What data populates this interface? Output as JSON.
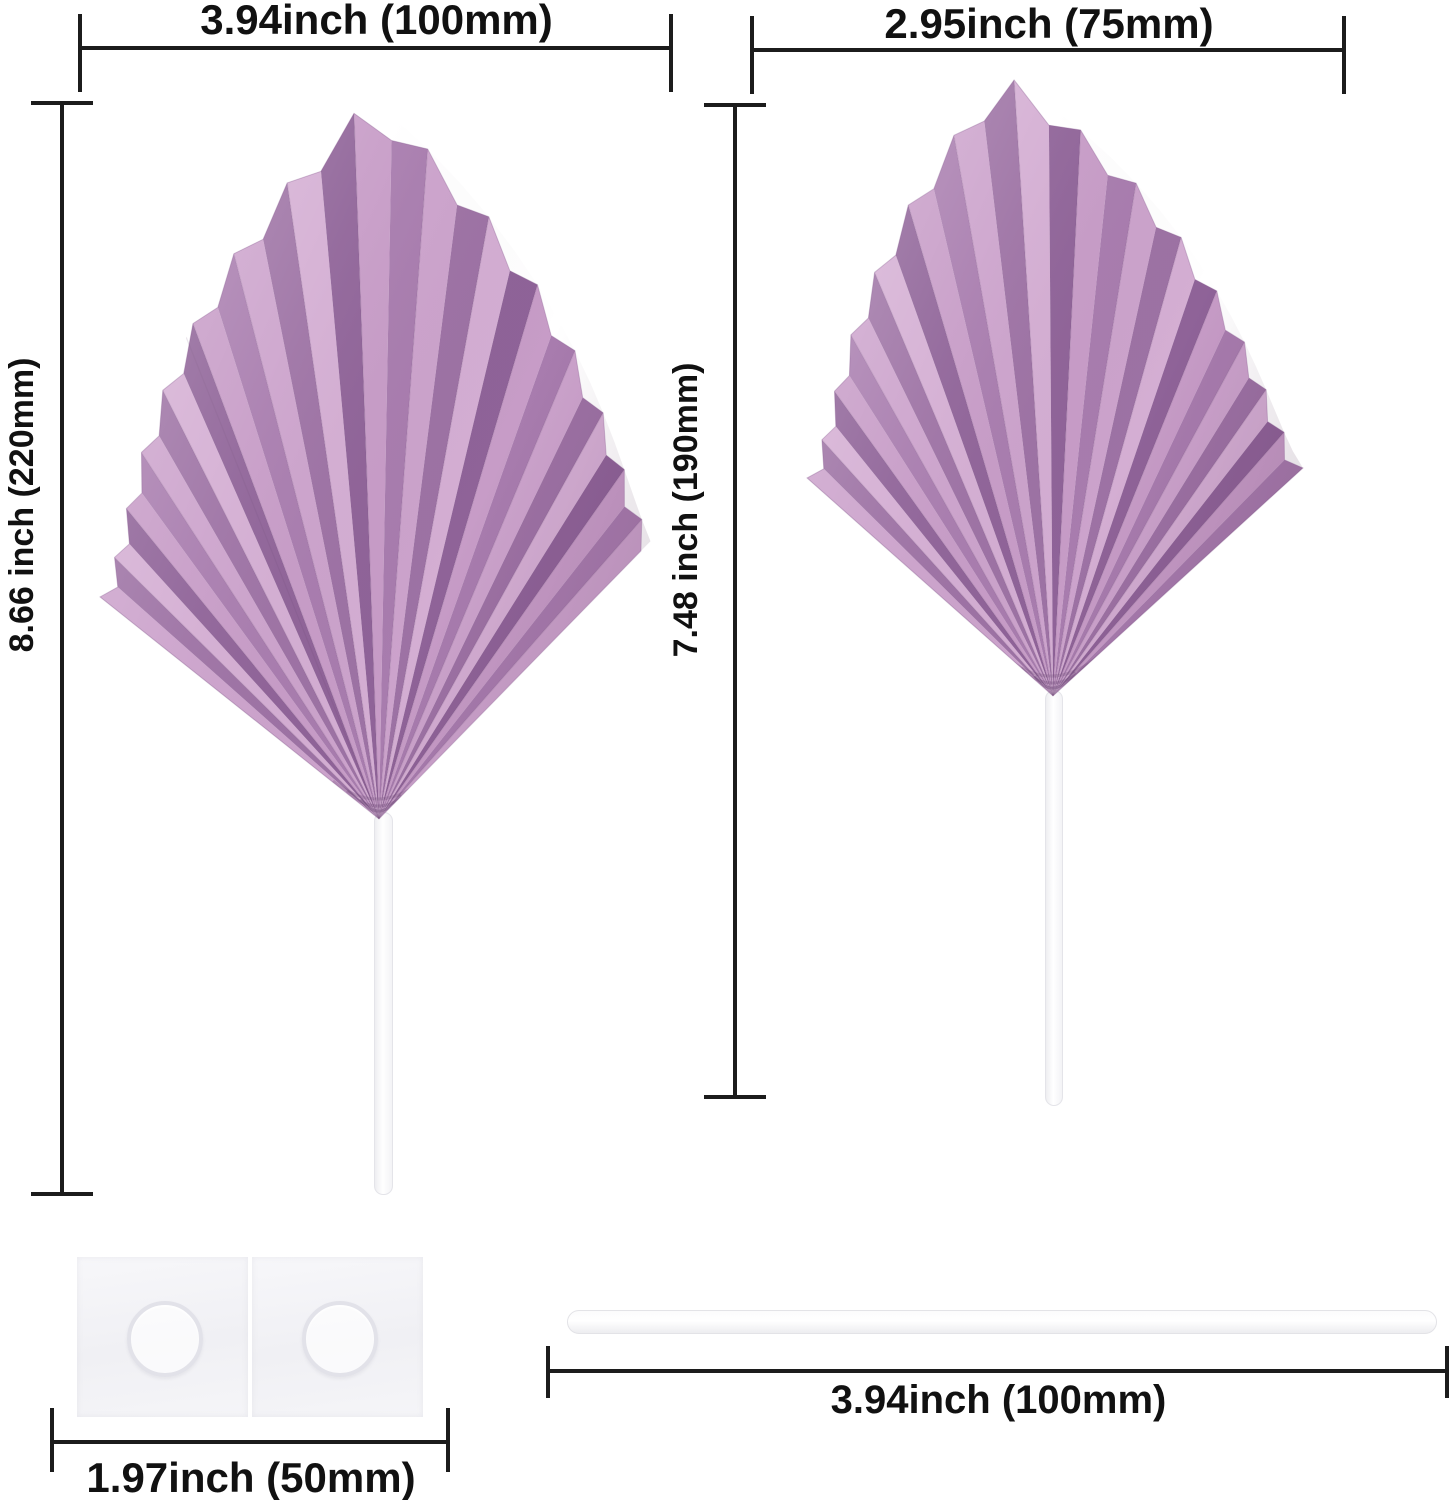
{
  "measurements": {
    "large_leaf_width": "3.94inch (100mm)",
    "small_leaf_width": "2.95inch (75mm)",
    "large_leaf_height": "8.66 inch (220mm)",
    "small_leaf_height": "7.48 inch (190mm)",
    "glue_dots_width": "1.97inch (50mm)",
    "stick_length": "3.94inch (100mm)"
  },
  "items": {
    "large_leaf": "large mauve pleated palm spear on white stick",
    "small_leaf": "small mauve pleated palm spear on white stick",
    "glue_dots": "two square glue dot sheets",
    "stick": "loose white paper stick"
  },
  "colors": {
    "background": "#ffffff",
    "dimension_line": "#1c1c1c",
    "label_text": "#111111",
    "leaf_palette": [
      "#cca3cc",
      "#9d72a4",
      "#d4aed3",
      "#8f6398",
      "#c79cc7",
      "#a87cae"
    ],
    "leaf_shadow": "#6f4a78",
    "leaf_outline": "#8a5f92",
    "stick_fill": "#fbfbfc",
    "stick_border": "#e4e4e9",
    "glue_sheet_fill": "#f4f4f8",
    "glue_circle_ring": "#e2e2e9"
  }
}
